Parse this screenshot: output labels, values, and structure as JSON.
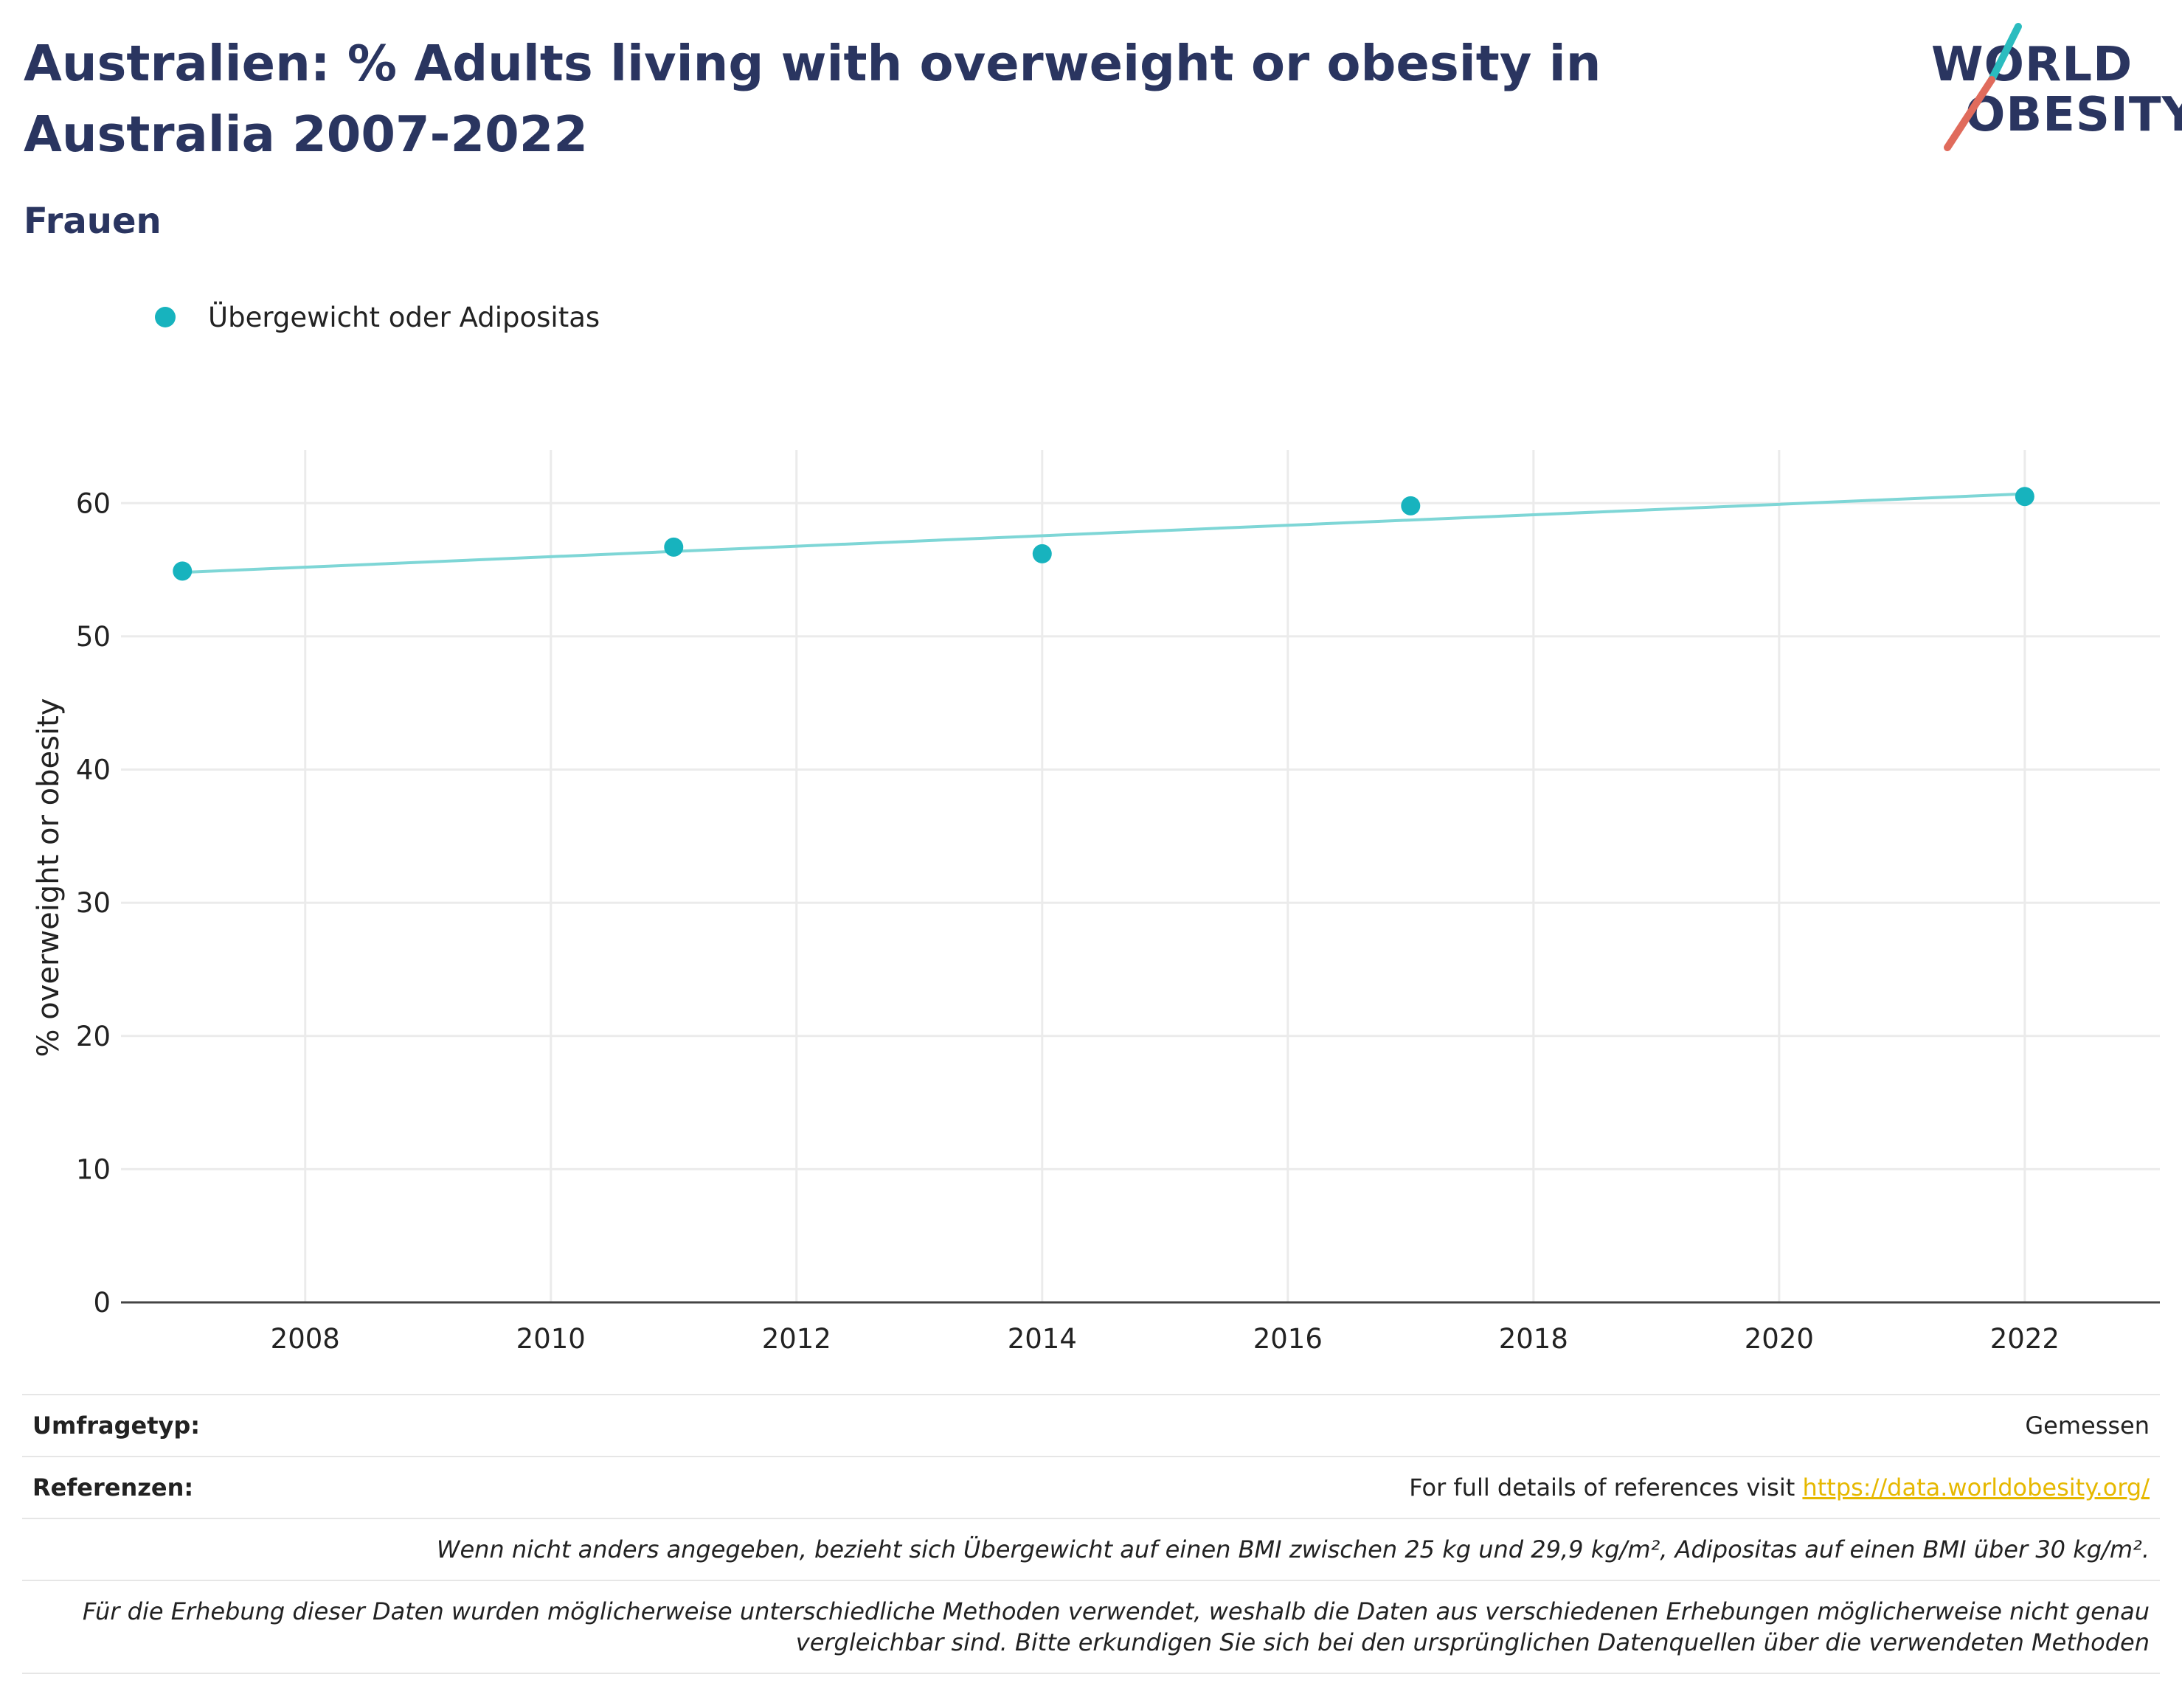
{
  "header": {
    "title": "Australien: % Adults living with overweight or obesity in Australia 2007-2022",
    "subtitle": "Frauen"
  },
  "logo": {
    "line1": "WORLD",
    "line2": "OBESITY",
    "accent_teal": "#2bbcbf",
    "accent_red": "#e06b5c"
  },
  "chart_data": {
    "type": "scatter",
    "title": "Australien: % Adults living with overweight or obesity in Australia 2007-2022",
    "subtitle": "Frauen",
    "xlabel": "",
    "ylabel": "% overweight or obesity",
    "xlim": [
      2006.5,
      2023.1
    ],
    "ylim": [
      0,
      64
    ],
    "x_ticks": [
      2008,
      2010,
      2012,
      2014,
      2016,
      2018,
      2020,
      2022
    ],
    "y_ticks": [
      0,
      10,
      20,
      30,
      40,
      50,
      60
    ],
    "grid": true,
    "legend": "top-left",
    "series": [
      {
        "name": "Übergewicht oder Adipositas",
        "color": "#17b3be",
        "x": [
          2007,
          2011,
          2014,
          2017,
          2022
        ],
        "y": [
          54.9,
          56.7,
          56.2,
          59.8,
          60.5
        ]
      }
    ],
    "trendline": {
      "color": "#7ed6d6",
      "x": [
        2007,
        2022
      ],
      "y": [
        54.8,
        60.7
      ]
    }
  },
  "notes": {
    "survey_key": "Umfragetyp:",
    "survey_value": "Gemessen",
    "ref_key": "Referenzen:",
    "ref_text": "For full details of references visit",
    "ref_link": "https://data.worldobesity.org/",
    "note1": "Wenn nicht anders angegeben, bezieht sich Übergewicht auf einen BMI zwischen 25 kg und 29,9 kg/m², Adipositas auf einen BMI über 30 kg/m².",
    "note2a": "Für die Erhebung dieser Daten wurden möglicherweise unterschiedliche Methoden verwendet, weshalb die Daten aus verschiedenen Erhebungen möglicherweise nicht genau",
    "note2b": "vergleichbar sind. Bitte erkundigen Sie sich bei den ursprünglichen Datenquellen über die verwendeten Methoden"
  }
}
